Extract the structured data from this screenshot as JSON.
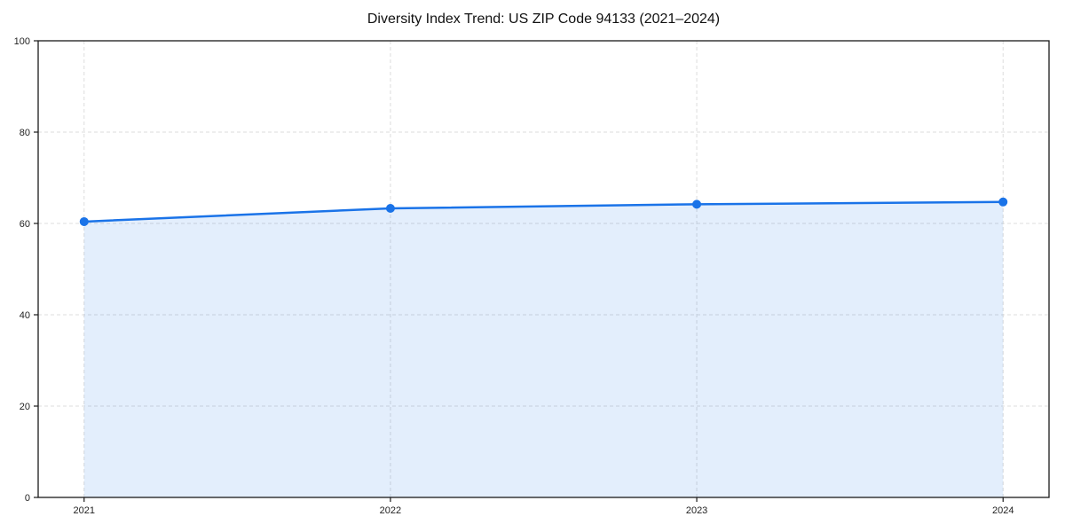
{
  "chart_data": {
    "type": "area",
    "title": "Diversity Index Trend: US ZIP Code 94133 (2021–2024)",
    "categories": [
      "2021",
      "2022",
      "2023",
      "2024"
    ],
    "series": [
      {
        "name": "Diversity Index",
        "values": [
          60.4,
          63.3,
          64.2,
          64.7
        ]
      }
    ],
    "xlabel": "",
    "ylabel": "",
    "ylim": [
      0,
      100
    ],
    "yticks": [
      0,
      20,
      40,
      60,
      80,
      100
    ],
    "grid": "dashed, both axes",
    "legend": false,
    "colors": {
      "line": "#1a73e8",
      "marker": "#1a73e8",
      "fill": "rgba(26,115,232,0.12)",
      "grid": "#dcdcdc",
      "spine": "#1a1a1a",
      "tick_label": "#222222",
      "title": "#111111",
      "background": "#ffffff"
    }
  }
}
